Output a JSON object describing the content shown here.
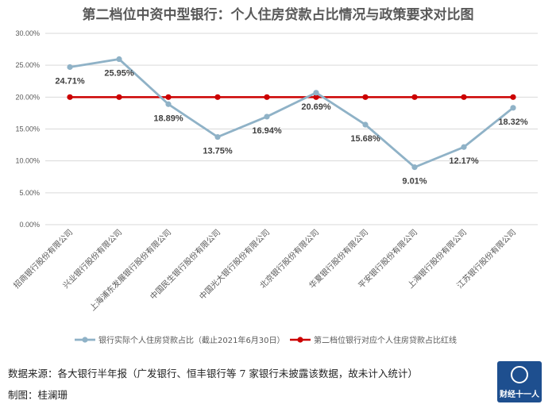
{
  "chart_data": {
    "type": "line",
    "title": "第二档位中资中型银行：个人住房贷款占比情况与政策要求对比图",
    "categories": [
      "招商银行股份有限公司",
      "兴业银行股份有限公司",
      "上海浦东发展银行股份有限公司",
      "中国民生银行股份有限公司",
      "中国光大银行股份有限公司",
      "北京银行股份有限公司",
      "华夏银行股份有限公司",
      "平安银行股份有限公司",
      "上海银行股份有限公司",
      "江苏银行股份有限公司"
    ],
    "series": [
      {
        "name": "银行实际个人住房贷款占比（截止2021年6月30日）",
        "values": [
          24.71,
          25.95,
          18.89,
          13.75,
          16.94,
          20.69,
          15.68,
          9.01,
          12.17,
          18.32
        ],
        "value_labels": [
          "24.71%",
          "25.95%",
          "18.89%",
          "13.75%",
          "16.94%",
          "20.69%",
          "15.68%",
          "9.01%",
          "12.17%",
          "18.32%"
        ],
        "color": "#8fb2c7"
      },
      {
        "name": "第二档位银行对应个人住房贷款占比红线",
        "values": [
          20,
          20,
          20,
          20,
          20,
          20,
          20,
          20,
          20,
          20
        ],
        "color": "#cc0000"
      }
    ],
    "y_ticks": [
      "0.00%",
      "5.00%",
      "10.00%",
      "15.00%",
      "20.00%",
      "25.00%",
      "30.00%"
    ],
    "ylim": [
      0,
      30
    ],
    "grid": true,
    "legend_position": "bottom"
  },
  "footer": {
    "source": "数据来源：各大银行半年报（广发银行、恒丰银行等 7 家银行未披露该数据，故未计入统计）",
    "author": "制图：桂澜珊"
  },
  "logo": {
    "text": "财经十一人"
  }
}
